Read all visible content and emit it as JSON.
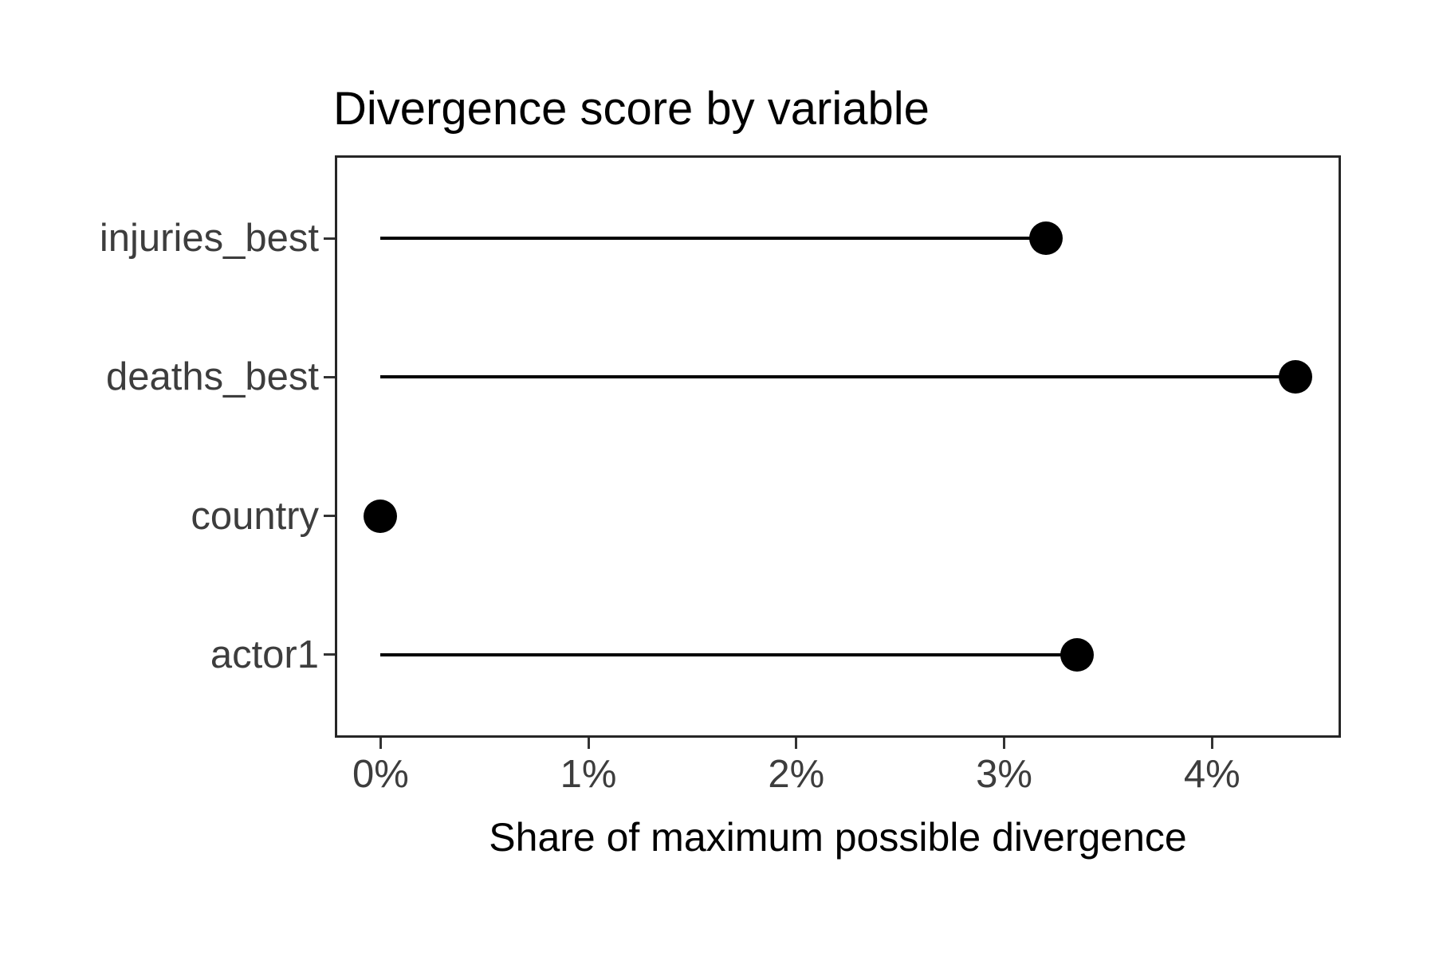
{
  "chart_data": {
    "type": "lollipop",
    "orientation": "horizontal",
    "title": "Divergence score by variable",
    "xlabel": "Share of maximum possible divergence",
    "ylabel": "",
    "categories": [
      "injuries_best",
      "deaths_best",
      "country",
      "actor1"
    ],
    "values": [
      3.2,
      4.4,
      0,
      3.35
    ],
    "unit": "percent_share",
    "x_ticks": [
      {
        "value": 0,
        "label": "0%"
      },
      {
        "value": 1,
        "label": "1%"
      },
      {
        "value": 2,
        "label": "2%"
      },
      {
        "value": 3,
        "label": "3%"
      },
      {
        "value": 4,
        "label": "4%"
      },
      {
        "value": 4.62,
        "label": ""
      }
    ],
    "xlim": [
      -0.22,
      4.62
    ],
    "baseline_value": 0,
    "grid": false,
    "legend": "none",
    "colors": {
      "point": "#000000",
      "segment": "#000000",
      "title": "#000000",
      "axis_title": "#000000",
      "tick_label": "#3d3d3d",
      "panel_border": "#262626",
      "background": "#ffffff"
    }
  }
}
